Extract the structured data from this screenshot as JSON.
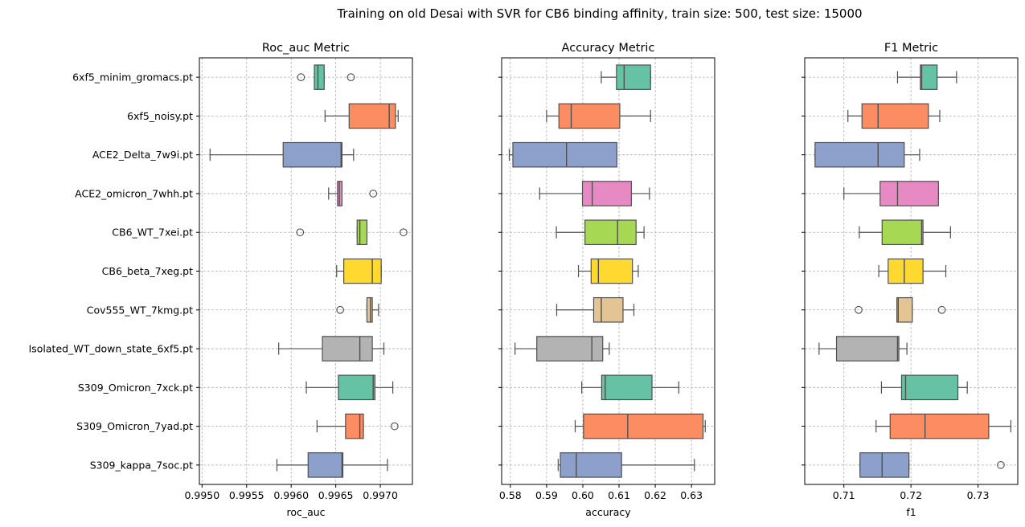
{
  "suptitle": "Training on old Desai with SVR for CB6 binding affinity, train size: 500, test size: 15000",
  "palette": [
    "#66c2a5",
    "#fc8d62",
    "#8da0cb",
    "#e78ac3",
    "#a6d854",
    "#ffd92f",
    "#e5c494",
    "#b3b3b3",
    "#66c2a5",
    "#fc8d62",
    "#8da0cb"
  ],
  "categories": [
    "6xf5_minim_gromacs.pt",
    "6xf5_noisy.pt",
    "ACE2_Delta_7w9i.pt",
    "ACE2_omicron_7whh.pt",
    "CB6_WT_7xei.pt",
    "CB6_beta_7xeg.pt",
    "Cov555_WT_7kmg.pt",
    "Isolated_WT_down_state_6xf5.pt",
    "S309_Omicron_7xck.pt",
    "S309_Omicron_7yad.pt",
    "S309_kappa_7soc.pt"
  ],
  "chart_data": [
    {
      "type": "box",
      "title": "Roc_auc Metric",
      "xlabel": "roc_auc",
      "xlim": [
        0.99497,
        0.99736
      ],
      "xticks": [
        0.995,
        0.9955,
        0.996,
        0.9965,
        0.997
      ],
      "xtick_labels": [
        "0.9950",
        "0.9955",
        "0.9960",
        "0.9965",
        "0.9970"
      ],
      "grid": true,
      "boxes": [
        {
          "whislo": 0.99626,
          "q1": 0.99626,
          "med": 0.9963,
          "q3": 0.99637,
          "whishi": 0.99637,
          "fliers": [
            0.99611,
            0.99667
          ]
        },
        {
          "whislo": 0.99638,
          "q1": 0.99665,
          "med": 0.9971,
          "q3": 0.99717,
          "whishi": 0.9972,
          "fliers": []
        },
        {
          "whislo": 0.99509,
          "q1": 0.99591,
          "med": 0.99656,
          "q3": 0.99657,
          "whishi": 0.9967,
          "fliers": []
        },
        {
          "whislo": 0.99642,
          "q1": 0.99652,
          "med": 0.99654,
          "q3": 0.99657,
          "whishi": 0.99657,
          "fliers": [
            0.99692
          ]
        },
        {
          "whislo": 0.99674,
          "q1": 0.99674,
          "med": 0.99677,
          "q3": 0.99685,
          "whishi": 0.99685,
          "fliers": [
            0.9961,
            0.99726
          ]
        },
        {
          "whislo": 0.99651,
          "q1": 0.99659,
          "med": 0.99691,
          "q3": 0.99701,
          "whishi": 0.99701,
          "fliers": []
        },
        {
          "whislo": 0.99685,
          "q1": 0.99685,
          "med": 0.99689,
          "q3": 0.99691,
          "whishi": 0.99698,
          "fliers": [
            0.99655
          ]
        },
        {
          "whislo": 0.99586,
          "q1": 0.99635,
          "med": 0.99677,
          "q3": 0.99691,
          "whishi": 0.99704,
          "fliers": []
        },
        {
          "whislo": 0.99617,
          "q1": 0.99653,
          "med": 0.99692,
          "q3": 0.99694,
          "whishi": 0.99714,
          "fliers": []
        },
        {
          "whislo": 0.99629,
          "q1": 0.99661,
          "med": 0.99677,
          "q3": 0.99681,
          "whishi": 0.99681,
          "fliers": [
            0.99716
          ]
        },
        {
          "whislo": 0.99584,
          "q1": 0.99619,
          "med": 0.99657,
          "q3": 0.99658,
          "whishi": 0.99708,
          "fliers": []
        }
      ]
    },
    {
      "type": "box",
      "title": "Accuracy Metric",
      "xlabel": "accuracy",
      "xlim": [
        0.5776,
        0.6364
      ],
      "xticks": [
        0.58,
        0.59,
        0.6,
        0.61,
        0.62,
        0.63
      ],
      "xtick_labels": [
        "0.58",
        "0.59",
        "0.60",
        "0.61",
        "0.62",
        "0.63"
      ],
      "grid": true,
      "boxes": [
        {
          "whislo": 0.6051,
          "q1": 0.6093,
          "med": 0.6114,
          "q3": 0.6187,
          "whishi": 0.6187,
          "fliers": []
        },
        {
          "whislo": 0.59,
          "q1": 0.5934,
          "med": 0.5968,
          "q3": 0.6102,
          "whishi": 0.6187,
          "fliers": []
        },
        {
          "whislo": 0.5797,
          "q1": 0.5807,
          "med": 0.5955,
          "q3": 0.6094,
          "whishi": 0.6094,
          "fliers": []
        },
        {
          "whislo": 0.5881,
          "q1": 0.5999,
          "med": 0.6026,
          "q3": 0.6134,
          "whishi": 0.6184,
          "fliers": []
        },
        {
          "whislo": 0.5927,
          "q1": 0.6006,
          "med": 0.6096,
          "q3": 0.6147,
          "whishi": 0.6169,
          "fliers": []
        },
        {
          "whislo": 0.5988,
          "q1": 0.6023,
          "med": 0.6043,
          "q3": 0.6137,
          "whishi": 0.6153,
          "fliers": []
        },
        {
          "whislo": 0.5928,
          "q1": 0.603,
          "med": 0.6051,
          "q3": 0.6111,
          "whishi": 0.6141,
          "fliers": []
        },
        {
          "whislo": 0.5813,
          "q1": 0.5873,
          "med": 0.6025,
          "q3": 0.6055,
          "whishi": 0.6073,
          "fliers": []
        },
        {
          "whislo": 0.5997,
          "q1": 0.6052,
          "med": 0.6062,
          "q3": 0.6191,
          "whishi": 0.6265,
          "fliers": []
        },
        {
          "whislo": 0.5979,
          "q1": 0.6002,
          "med": 0.6124,
          "q3": 0.6332,
          "whishi": 0.6338,
          "fliers": []
        },
        {
          "whislo": 0.5932,
          "q1": 0.5938,
          "med": 0.5982,
          "q3": 0.6107,
          "whishi": 0.6308,
          "fliers": []
        }
      ]
    },
    {
      "type": "box",
      "title": "F1 Metric",
      "xlabel": "f1",
      "xlim": [
        0.70416,
        0.73593
      ],
      "xticks": [
        0.71,
        0.72,
        0.73
      ],
      "xtick_labels": [
        "0.71",
        "0.72",
        "0.73"
      ],
      "grid": true,
      "boxes": [
        {
          "whislo": 0.718,
          "q1": 0.7214,
          "med": 0.7216,
          "q3": 0.7239,
          "whishi": 0.7268,
          "fliers": []
        },
        {
          "whislo": 0.7106,
          "q1": 0.7127,
          "med": 0.7151,
          "q3": 0.7226,
          "whishi": 0.7243,
          "fliers": []
        },
        {
          "whislo": 0.7057,
          "q1": 0.7057,
          "med": 0.7151,
          "q3": 0.719,
          "whishi": 0.7213,
          "fliers": []
        },
        {
          "whislo": 0.71,
          "q1": 0.7154,
          "med": 0.718,
          "q3": 0.7241,
          "whishi": 0.7241,
          "fliers": []
        },
        {
          "whislo": 0.7123,
          "q1": 0.7157,
          "med": 0.7216,
          "q3": 0.7218,
          "whishi": 0.7259,
          "fliers": []
        },
        {
          "whislo": 0.7152,
          "q1": 0.7166,
          "med": 0.719,
          "q3": 0.7218,
          "whishi": 0.7252,
          "fliers": []
        },
        {
          "whislo": 0.7179,
          "q1": 0.7179,
          "med": 0.7181,
          "q3": 0.7202,
          "whishi": 0.7202,
          "fliers": [
            0.7122,
            0.7246
          ]
        },
        {
          "whislo": 0.7063,
          "q1": 0.7089,
          "med": 0.718,
          "q3": 0.7182,
          "whishi": 0.7194,
          "fliers": []
        },
        {
          "whislo": 0.7156,
          "q1": 0.7186,
          "med": 0.7192,
          "q3": 0.727,
          "whishi": 0.7284,
          "fliers": []
        },
        {
          "whislo": 0.7148,
          "q1": 0.7169,
          "med": 0.7221,
          "q3": 0.7316,
          "whishi": 0.7349,
          "fliers": []
        },
        {
          "whislo": 0.7124,
          "q1": 0.7124,
          "med": 0.7157,
          "q3": 0.7197,
          "whishi": 0.7197,
          "fliers": [
            0.7334
          ]
        }
      ]
    }
  ]
}
